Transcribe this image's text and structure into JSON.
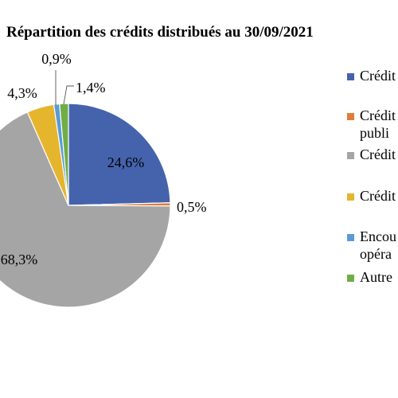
{
  "chart_data": {
    "type": "pie",
    "title": "Répartition des crédits distribués au 30/09/2021",
    "slices": [
      {
        "label": "Crédit",
        "value": 24.6,
        "data_label": "24,6%",
        "color": "#4563AD"
      },
      {
        "label": "Crédit publi",
        "value": 0.5,
        "data_label": "0,5%",
        "color": "#E07B39"
      },
      {
        "label": "Crédit",
        "value": 68.3,
        "data_label": "68,3%",
        "color": "#A5A5A5"
      },
      {
        "label": "Crédit",
        "value": 4.3,
        "data_label": "4,3%",
        "color": "#E6B52E"
      },
      {
        "label": "Encou opéra",
        "value": 0.9,
        "data_label": "0,9%",
        "color": "#5B9BD5"
      },
      {
        "label": "Autre",
        "value": 1.4,
        "data_label": "1,4%",
        "color": "#70AD47"
      }
    ],
    "legend_position": "right"
  },
  "legend_lines": [
    [
      "Crédit"
    ],
    [
      "Crédit",
      "publi"
    ],
    [
      "Crédit"
    ],
    [
      "Crédit"
    ],
    [
      "Encou",
      "opéra"
    ],
    [
      "Autre"
    ]
  ]
}
